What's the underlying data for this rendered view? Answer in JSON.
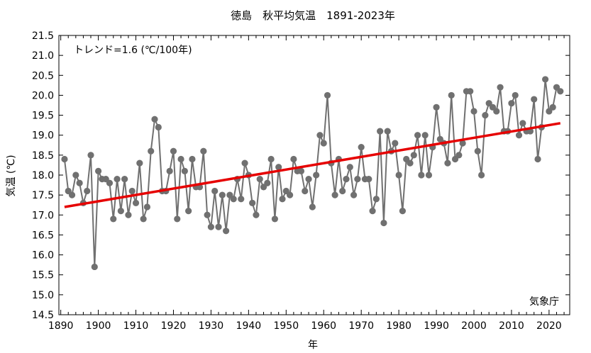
{
  "chart_data": {
    "type": "line",
    "title": "徳島　秋平均気温　1891-2023年",
    "xlabel": "年",
    "ylabel": "気温 (℃)",
    "annotation_trend": "トレンド=1.6 (℃/100年)",
    "annotation_source": "気象庁",
    "xlim": [
      1889.5,
      2025.5
    ],
    "ylim": [
      14.5,
      21.5
    ],
    "x_ticks": [
      1890,
      1900,
      1910,
      1920,
      1930,
      1940,
      1950,
      1960,
      1970,
      1980,
      1990,
      2000,
      2010,
      2020
    ],
    "y_ticks": [
      14.5,
      15.0,
      15.5,
      16.0,
      16.5,
      17.0,
      17.5,
      18.0,
      18.5,
      19.0,
      19.5,
      20.0,
      20.5,
      21.0,
      21.5
    ],
    "y_tick_labels": [
      "14.5",
      "15.0",
      "15.5",
      "16.0",
      "16.5",
      "17.0",
      "17.5",
      "18.0",
      "18.5",
      "19.0",
      "19.5",
      "20.0",
      "20.5",
      "21.0",
      "21.5"
    ],
    "grid": false,
    "series": [
      {
        "values": [
          [
            1891,
            18.4
          ],
          [
            1892,
            17.6
          ],
          [
            1893,
            17.5
          ],
          [
            1894,
            18.0
          ],
          [
            1895,
            17.8
          ],
          [
            1896,
            17.3
          ],
          [
            1897,
            17.6
          ],
          [
            1898,
            18.5
          ],
          [
            1899,
            15.7
          ],
          [
            1900,
            18.1
          ],
          [
            1901,
            17.9
          ],
          [
            1902,
            17.9
          ],
          [
            1903,
            17.8
          ],
          [
            1904,
            16.9
          ],
          [
            1905,
            17.9
          ],
          [
            1906,
            17.1
          ],
          [
            1907,
            17.9
          ],
          [
            1908,
            17.0
          ],
          [
            1909,
            17.6
          ],
          [
            1910,
            17.3
          ],
          [
            1911,
            18.3
          ],
          [
            1912,
            16.9
          ],
          [
            1913,
            17.2
          ],
          [
            1914,
            18.6
          ],
          [
            1915,
            19.4
          ],
          [
            1916,
            19.2
          ],
          [
            1917,
            17.6
          ],
          [
            1918,
            17.6
          ],
          [
            1919,
            18.1
          ],
          [
            1920,
            18.6
          ],
          [
            1921,
            16.9
          ],
          [
            1922,
            18.4
          ],
          [
            1923,
            18.1
          ],
          [
            1924,
            17.1
          ],
          [
            1925,
            18.4
          ],
          [
            1926,
            17.7
          ],
          [
            1927,
            17.7
          ],
          [
            1928,
            18.6
          ],
          [
            1929,
            17.0
          ],
          [
            1930,
            16.7
          ],
          [
            1931,
            17.6
          ],
          [
            1932,
            16.7
          ],
          [
            1933,
            17.5
          ],
          [
            1934,
            16.6
          ],
          [
            1935,
            17.5
          ],
          [
            1936,
            17.4
          ],
          [
            1937,
            17.9
          ],
          [
            1938,
            17.4
          ],
          [
            1939,
            18.3
          ],
          [
            1940,
            18.0
          ],
          [
            1941,
            17.3
          ],
          [
            1942,
            17.0
          ],
          [
            1943,
            17.9
          ],
          [
            1944,
            17.7
          ],
          [
            1945,
            17.8
          ],
          [
            1946,
            18.4
          ],
          [
            1947,
            16.9
          ],
          [
            1948,
            18.2
          ],
          [
            1949,
            17.4
          ],
          [
            1950,
            17.6
          ],
          [
            1951,
            17.5
          ],
          [
            1952,
            18.4
          ],
          [
            1953,
            18.1
          ],
          [
            1954,
            18.1
          ],
          [
            1955,
            17.6
          ],
          [
            1956,
            17.9
          ],
          [
            1957,
            17.2
          ],
          [
            1958,
            18.0
          ],
          [
            1959,
            19.0
          ],
          [
            1960,
            18.8
          ],
          [
            1961,
            20.0
          ],
          [
            1962,
            18.3
          ],
          [
            1963,
            17.5
          ],
          [
            1964,
            18.4
          ],
          [
            1965,
            17.6
          ],
          [
            1966,
            17.9
          ],
          [
            1967,
            18.2
          ],
          [
            1968,
            17.5
          ],
          [
            1969,
            17.9
          ],
          [
            1970,
            18.7
          ],
          [
            1971,
            17.9
          ],
          [
            1972,
            17.9
          ],
          [
            1973,
            17.1
          ],
          [
            1974,
            17.4
          ],
          [
            1975,
            19.1
          ],
          [
            1976,
            16.8
          ],
          [
            1977,
            19.1
          ],
          [
            1978,
            18.6
          ],
          [
            1979,
            18.8
          ],
          [
            1980,
            18.0
          ],
          [
            1981,
            17.1
          ],
          [
            1982,
            18.4
          ],
          [
            1983,
            18.3
          ],
          [
            1984,
            18.5
          ],
          [
            1985,
            19.0
          ],
          [
            1986,
            18.0
          ],
          [
            1987,
            19.0
          ],
          [
            1988,
            18.0
          ],
          [
            1989,
            18.7
          ],
          [
            1990,
            19.7
          ],
          [
            1991,
            18.9
          ],
          [
            1992,
            18.8
          ],
          [
            1993,
            18.3
          ],
          [
            1994,
            20.0
          ],
          [
            1995,
            18.4
          ],
          [
            1996,
            18.5
          ],
          [
            1997,
            18.8
          ],
          [
            1998,
            20.1
          ],
          [
            1999,
            20.1
          ],
          [
            2000,
            19.6
          ],
          [
            2001,
            18.6
          ],
          [
            2002,
            18.0
          ],
          [
            2003,
            19.5
          ],
          [
            2004,
            19.8
          ],
          [
            2005,
            19.7
          ],
          [
            2006,
            19.6
          ],
          [
            2007,
            20.2
          ],
          [
            2008,
            19.1
          ],
          [
            2009,
            19.1
          ],
          [
            2010,
            19.8
          ],
          [
            2011,
            20.0
          ],
          [
            2012,
            19.0
          ],
          [
            2013,
            19.3
          ],
          [
            2014,
            19.1
          ],
          [
            2015,
            19.1
          ],
          [
            2016,
            19.9
          ],
          [
            2017,
            18.4
          ],
          [
            2018,
            19.2
          ],
          [
            2019,
            20.4
          ],
          [
            2020,
            19.6
          ],
          [
            2021,
            19.7
          ],
          [
            2022,
            20.2
          ],
          [
            2023,
            20.1
          ]
        ],
        "line_color": "#707070",
        "marker_color": "#707070"
      }
    ],
    "trend_line": {
      "x": [
        1891,
        2023
      ],
      "y": [
        17.2,
        19.3
      ],
      "color": "#e60000"
    }
  }
}
